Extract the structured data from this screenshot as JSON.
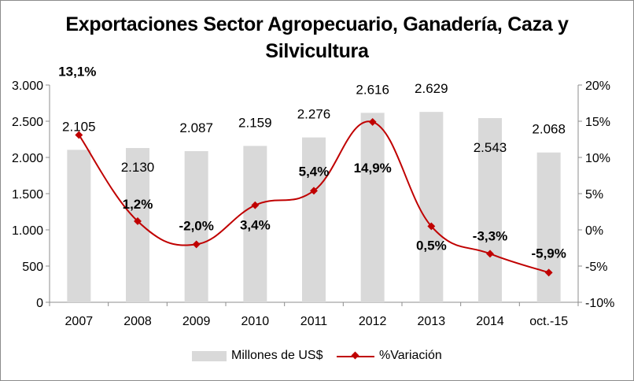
{
  "chart_data": {
    "type": "bar",
    "title_lines": [
      "Exportaciones Sector Agropecuario, Ganadería, Caza y",
      "Silvicultura"
    ],
    "categories": [
      "2007",
      "2008",
      "2009",
      "2010",
      "2011",
      "2012",
      "2013",
      "2014",
      "oct.-15"
    ],
    "series": [
      {
        "name": "Millones de US$",
        "type": "bar",
        "axis": "left",
        "values": [
          2105,
          2130,
          2087,
          2159,
          2276,
          2616,
          2629,
          2543,
          2068
        ],
        "labels": [
          "2.105",
          "2.130",
          "2.087",
          "2.159",
          "2.276",
          "2.616",
          "2.629",
          "2.543",
          "2.068"
        ],
        "color": "#d9d9d9"
      },
      {
        "name": "%Variación",
        "type": "line",
        "axis": "right",
        "values": [
          13.1,
          1.2,
          -2.0,
          3.4,
          5.4,
          14.9,
          0.5,
          -3.3,
          -5.9
        ],
        "labels": [
          "13,1%",
          "1,2%",
          "-2,0%",
          "3,4%",
          "5,4%",
          "14,9%",
          "0,5%",
          "-3,3%",
          "-5,9%"
        ],
        "color": "#c00000"
      }
    ],
    "y_left": {
      "min": 0,
      "max": 3000,
      "ticks": [
        0,
        500,
        1000,
        1500,
        2000,
        2500,
        3000
      ],
      "tick_labels": [
        "0",
        "500",
        "1.000",
        "1.500",
        "2.000",
        "2.500",
        "3.000"
      ]
    },
    "y_right": {
      "min": -10,
      "max": 20,
      "ticks": [
        -10,
        -5,
        0,
        5,
        10,
        15,
        20
      ],
      "tick_labels": [
        "-10%",
        "-5%",
        "0%",
        "5%",
        "10%",
        "15%",
        "20%"
      ]
    },
    "grid": false,
    "legend_position": "bottom"
  }
}
